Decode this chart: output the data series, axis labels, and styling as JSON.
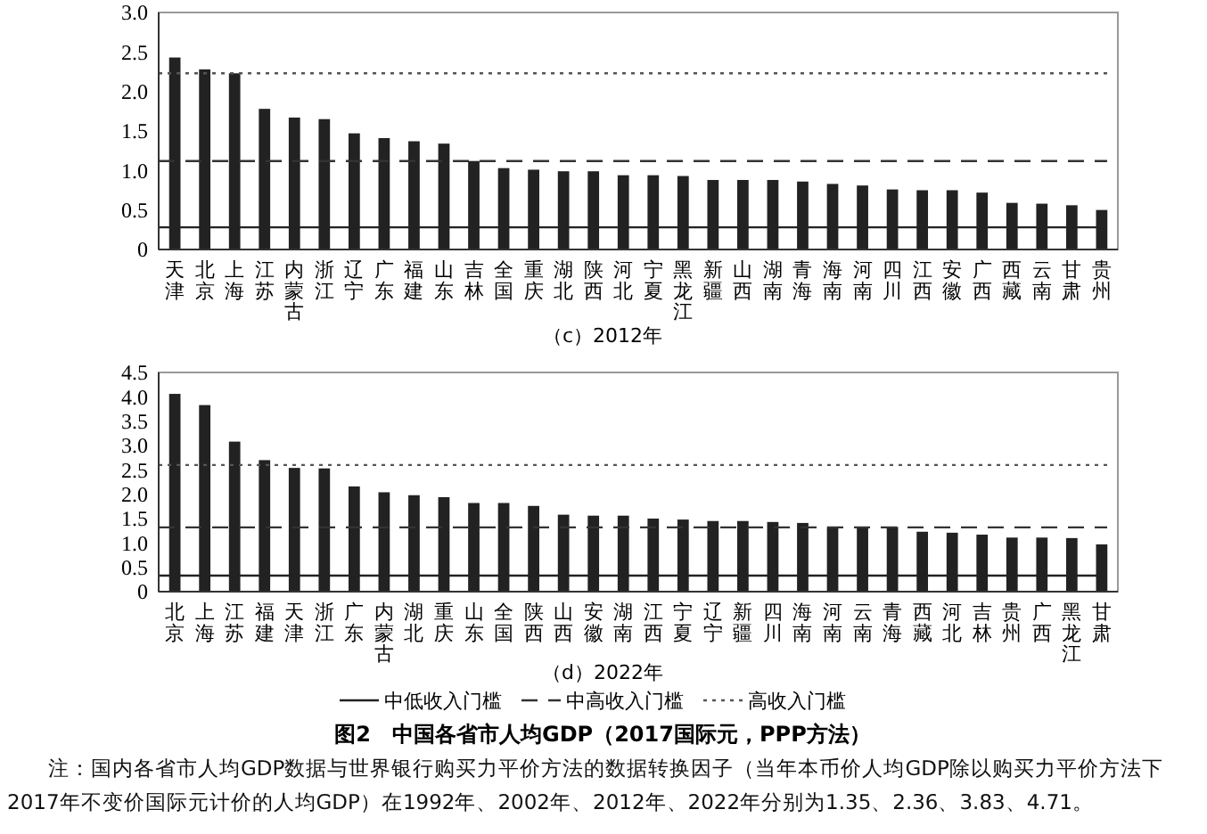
{
  "chart_data": [
    {
      "type": "bar",
      "xlabel": "（c）2012年",
      "categories": [
        "天津",
        "北京",
        "上海",
        "江苏",
        "内蒙古",
        "浙江",
        "辽宁",
        "广东",
        "福建",
        "山东",
        "吉林",
        "全国",
        "重庆",
        "湖北",
        "陕西",
        "河北",
        "宁夏",
        "黑龙江",
        "新疆",
        "山西",
        "湖南",
        "青海",
        "海南",
        "河南",
        "四川",
        "江西",
        "安徽",
        "广西",
        "西藏",
        "云南",
        "甘肃",
        "贵州"
      ],
      "values": [
        2.43,
        2.28,
        2.23,
        1.78,
        1.67,
        1.65,
        1.47,
        1.41,
        1.37,
        1.34,
        1.12,
        1.03,
        1.01,
        0.99,
        0.99,
        0.94,
        0.94,
        0.93,
        0.88,
        0.88,
        0.88,
        0.86,
        0.83,
        0.81,
        0.76,
        0.75,
        0.75,
        0.72,
        0.59,
        0.58,
        0.56,
        0.5
      ],
      "color": "#222222",
      "ylim": [
        0,
        3
      ],
      "yticks": [
        0,
        0.5,
        {
          "value": 1,
          "label": "1.0"
        },
        1.5,
        {
          "value": 2,
          "label": "2.0"
        },
        2.5,
        {
          "value": 3,
          "label": "3.0"
        }
      ],
      "grid": false,
      "ref_lines": [
        {
          "axis": "y",
          "value": 0.28,
          "line_style": "solid",
          "color": "#222222"
        },
        {
          "axis": "y",
          "value": 1.12,
          "line_style": "dashed",
          "color": "#333333"
        },
        {
          "axis": "y",
          "value": 2.23,
          "line_style": "dotted",
          "color": "#555555"
        }
      ]
    },
    {
      "type": "bar",
      "xlabel": "（d）2022年",
      "title": "图2　中国各省市人均GDP（2017国际元，PPP方法）",
      "categories": [
        "北京",
        "上海",
        "江苏",
        "福建",
        "天津",
        "浙江",
        "广东",
        "内蒙古",
        "湖北",
        "重庆",
        "山东",
        "全国",
        "陕西",
        "山西",
        "安徽",
        "湖南",
        "江西",
        "宁夏",
        "辽宁",
        "新疆",
        "四川",
        "海南",
        "河南",
        "云南",
        "青海",
        "西藏",
        "河北",
        "吉林",
        "贵州",
        "广西",
        "黑龙江",
        "甘肃"
      ],
      "values": [
        4.06,
        3.83,
        3.08,
        2.7,
        2.54,
        2.53,
        2.16,
        2.04,
        1.98,
        1.94,
        1.82,
        1.82,
        1.76,
        1.58,
        1.56,
        1.56,
        1.5,
        1.48,
        1.45,
        1.45,
        1.43,
        1.41,
        1.33,
        1.33,
        1.33,
        1.23,
        1.21,
        1.17,
        1.11,
        1.11,
        1.1,
        0.97
      ],
      "color": "#222222",
      "legend": "bottom",
      "ylim": [
        0,
        4.5
      ],
      "yticks": [
        0,
        0.5,
        {
          "value": 1,
          "label": "1.0"
        },
        1.5,
        {
          "value": 2,
          "label": "2.0"
        },
        2.5,
        {
          "value": 3,
          "label": "3.0"
        },
        3.5,
        {
          "value": 4,
          "label": "4.0"
        },
        4.5
      ],
      "grid": false,
      "ref_lines": [
        {
          "axis": "y",
          "value": 0.33,
          "label": "中低收入门槛",
          "line_style": "solid",
          "color": "#222222"
        },
        {
          "axis": "y",
          "value": 1.32,
          "label": "中高收入门槛",
          "line_style": "dashed",
          "color": "#333333"
        },
        {
          "axis": "y",
          "value": 2.6,
          "label": "高收入门槛",
          "line_style": "dotted",
          "color": "#555555"
        }
      ],
      "annotations": [
        "注：国内各省市人均GDP数据与世界银行购买力平价方法的数据转换因子（当年本币价人均GDP除以购买力平价方法下2017年不变价国际元计价的人均GDP）在1992年、2002年、2012年、2022年分别为1.35、2.36、3.83、4.71。"
      ]
    }
  ]
}
